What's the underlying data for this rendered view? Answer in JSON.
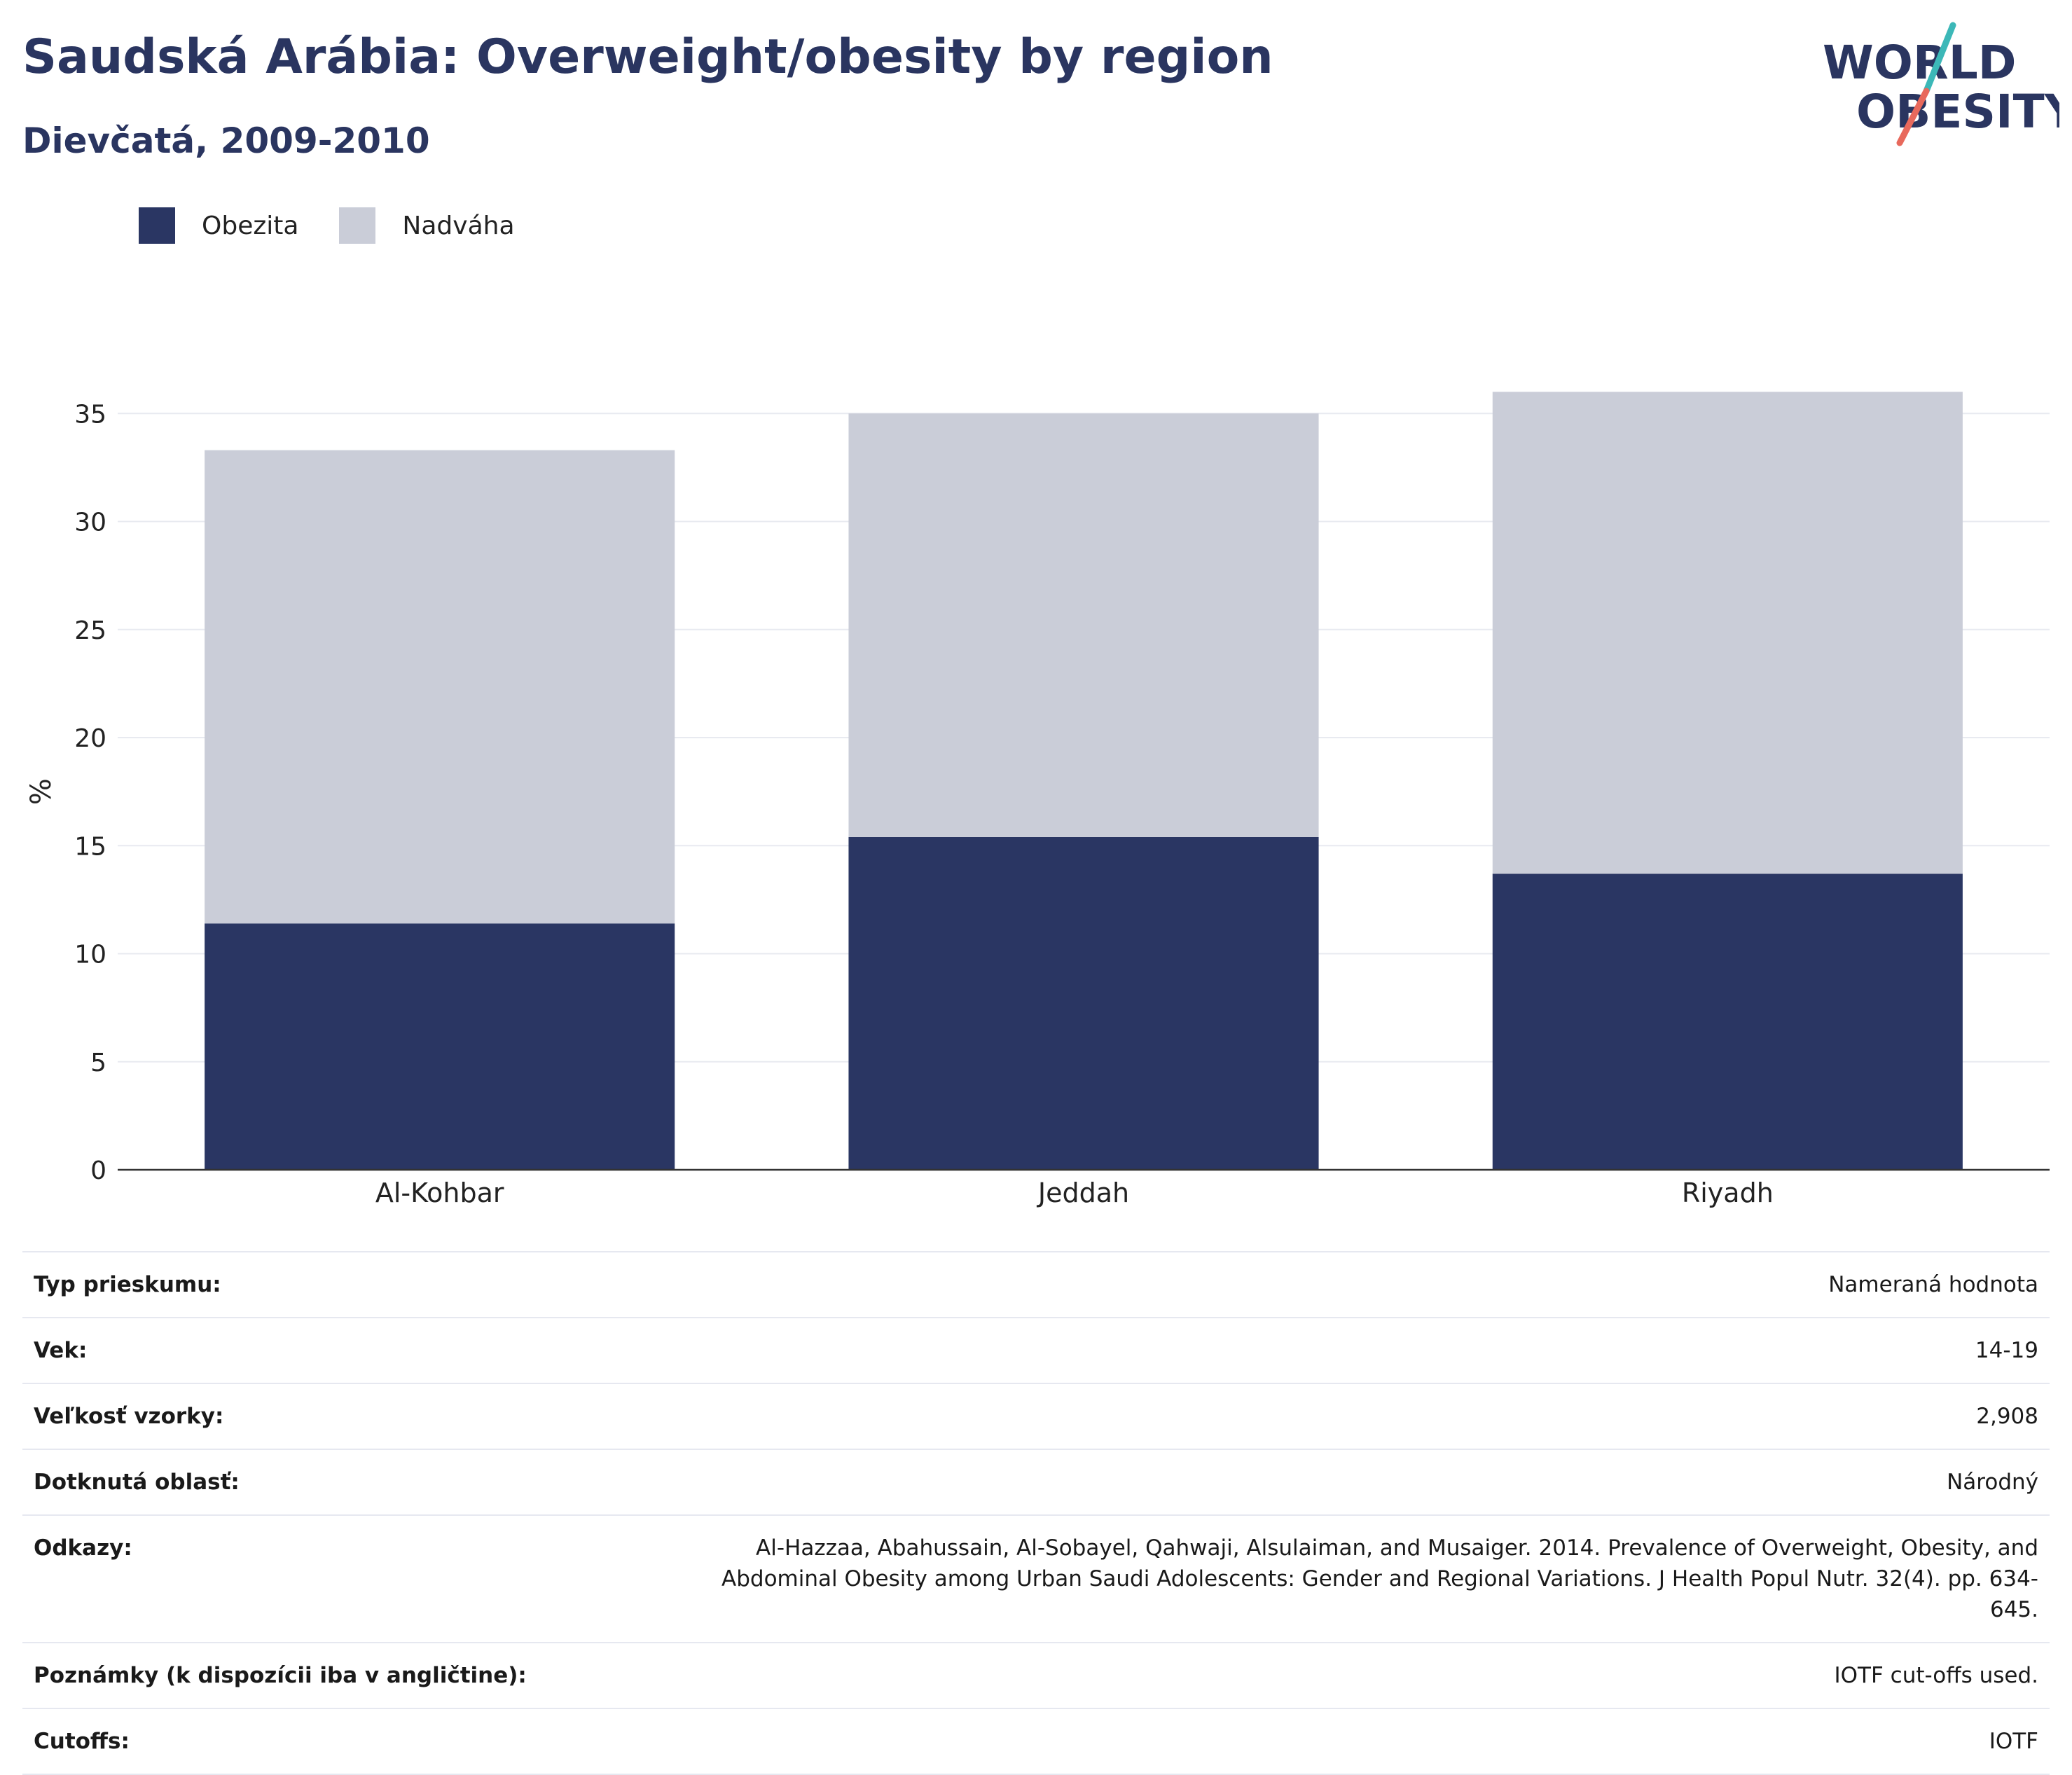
{
  "header": {
    "title": "Saudská Arábia: Overweight/obesity by region",
    "subtitle": "Dievčatá, 2009-2010"
  },
  "logo": {
    "line1": "WORLD",
    "line2": "OBESITY",
    "icon": "world-obesity-logo",
    "teal": "#3cb8b8",
    "coral": "#e8695c",
    "navy": "#2a3560"
  },
  "chart_data": {
    "type": "bar",
    "stacked": true,
    "categories": [
      "Al-Kohbar",
      "Jeddah",
      "Riyadh"
    ],
    "series": [
      {
        "name": "Obezita",
        "values": [
          11.4,
          15.4,
          13.7
        ],
        "color": "#2a3663"
      },
      {
        "name": "Nadváha",
        "values": [
          21.9,
          19.6,
          22.3
        ],
        "color": "#cacdd8"
      }
    ],
    "ylabel": "%",
    "xlabel": "",
    "ylim": [
      0,
      37
    ],
    "yticks": [
      0,
      5,
      10,
      15,
      20,
      25,
      30,
      35
    ],
    "grid": true,
    "legend": "top-left"
  },
  "info": [
    {
      "label": "Typ prieskumu:",
      "value": "Nameraná hodnota"
    },
    {
      "label": "Vek:",
      "value": "14-19"
    },
    {
      "label": "Veľkosť vzorky:",
      "value": "2,908"
    },
    {
      "label": "Dotknutá oblasť:",
      "value": "Národný"
    },
    {
      "label": "Odkazy:",
      "value": "Al-Hazzaa, Abahussain, Al-Sobayel, Qahwaji, Alsulaiman, and Musaiger. 2014. Prevalence of Overweight, Obesity, and Abdominal Obesity among Urban Saudi Adolescents: Gender and Regional Variations. J Health Popul Nutr. 32(4). pp. 634-645."
    },
    {
      "label": "Poznámky (k dispozícii iba v angličtine):",
      "value": "IOTF cut-offs used."
    },
    {
      "label": "Cutoffs:",
      "value": "IOTF"
    }
  ]
}
